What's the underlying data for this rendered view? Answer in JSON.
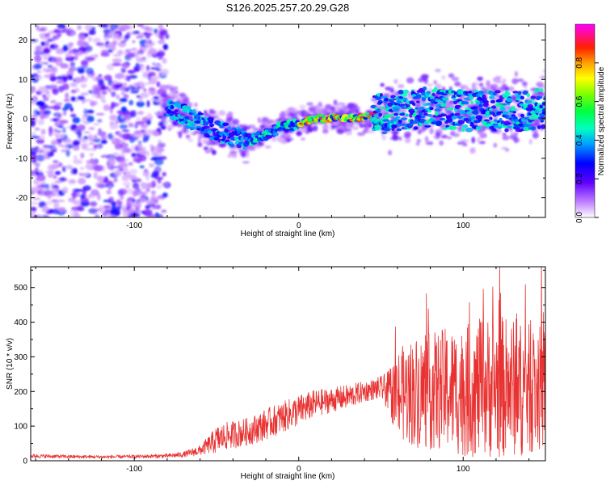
{
  "title": "S126.2025.257.20.29.G28",
  "chart_data": [
    {
      "type": "heatmap",
      "xlabel": "Height of straight line (km)",
      "ylabel": "Frequency (Hz)",
      "xlim": [
        -163,
        150
      ],
      "ylim": [
        -25,
        24
      ],
      "x_ticks": [
        -100,
        0,
        100
      ],
      "y_ticks": [
        -20,
        -10,
        0,
        10,
        20
      ],
      "colorbar": {
        "label": "Normalized spectral amplitude",
        "range": [
          0,
          1
        ],
        "ticks": [
          0.0,
          0.2,
          0.4,
          0.6,
          0.8
        ],
        "tick_labels": [
          "0.0",
          "0.2",
          "0.4",
          "0.6",
          "0.8"
        ],
        "colors": [
          "#ffffff",
          "#8000ff",
          "#0000ff",
          "#00c0ff",
          "#00ff80",
          "#80ff00",
          "#ffff00",
          "#ff8000",
          "#ff0000",
          "#ff00ff"
        ]
      },
      "ridge": {
        "x": [
          -80,
          -70,
          -60,
          -50,
          -40,
          -30,
          -20,
          -10,
          0,
          10,
          20,
          30,
          40,
          45,
          60,
          80,
          100,
          120,
          140,
          150
        ],
        "y": [
          3,
          1,
          -1,
          -3,
          -4.5,
          -5.5,
          -4,
          -2,
          -1.2,
          0,
          0.2,
          0.1,
          0.3,
          1,
          2,
          3,
          2,
          2,
          2,
          3
        ]
      }
    },
    {
      "type": "line",
      "xlabel": "Height of straight line (km)",
      "ylabel": "SNR (10 * v/v)",
      "xlim": [
        -163,
        150
      ],
      "ylim": [
        0,
        560
      ],
      "x_ticks": [
        -100,
        0,
        100
      ],
      "y_ticks": [
        0,
        100,
        200,
        300,
        400,
        500
      ],
      "color": "#e83232",
      "envelope": {
        "x": [
          -163,
          -140,
          -120,
          -100,
          -80,
          -70,
          -60,
          -55,
          -50,
          -45,
          -40,
          -30,
          -20,
          -10,
          0,
          10,
          20,
          30,
          40,
          45,
          50,
          55,
          60,
          70,
          80,
          90,
          100,
          110,
          120,
          130,
          140,
          150
        ],
        "mean": [
          14,
          12,
          11,
          12,
          14,
          18,
          30,
          45,
          60,
          70,
          75,
          85,
          105,
          125,
          145,
          165,
          175,
          185,
          200,
          205,
          210,
          200,
          190,
          200,
          200,
          205,
          200,
          210,
          215,
          210,
          205,
          210
        ],
        "spread": [
          6,
          5,
          5,
          5,
          6,
          8,
          15,
          25,
          40,
          40,
          40,
          40,
          45,
          45,
          45,
          40,
          35,
          35,
          30,
          30,
          35,
          60,
          130,
          160,
          170,
          180,
          190,
          200,
          210,
          200,
          190,
          180
        ]
      }
    }
  ]
}
